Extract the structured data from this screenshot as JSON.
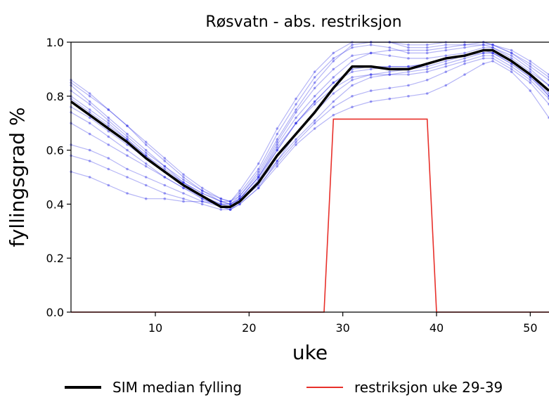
{
  "chart_data": {
    "type": "line",
    "title": "Røsvatn - abs. restriksjon",
    "xlabel": "uke",
    "ylabel": "fyllingsgrad %",
    "xlim": [
      1,
      52
    ],
    "ylim": [
      0.0,
      1.0
    ],
    "xticks": [
      10,
      20,
      30,
      40,
      50
    ],
    "yticks": [
      0.0,
      0.2,
      0.4,
      0.6,
      0.8,
      1.0
    ],
    "xtick_labels": [
      "10",
      "20",
      "30",
      "40",
      "50"
    ],
    "ytick_labels": [
      "0.0",
      "0.2",
      "0.4",
      "0.6",
      "0.8",
      "1.0"
    ],
    "grid": false,
    "legend_position": "bottom",
    "colors": {
      "median": "#000000",
      "restriction": "#e8302a",
      "simulations": "#2a2ae6"
    },
    "series": [
      {
        "name": "SIM median fylling",
        "x": [
          1,
          3,
          5,
          7,
          9,
          11,
          13,
          15,
          17,
          18,
          19,
          21,
          23,
          25,
          27,
          29,
          31,
          33,
          35,
          37,
          39,
          41,
          43,
          45,
          46,
          48,
          50,
          52
        ],
        "y": [
          0.78,
          0.73,
          0.68,
          0.63,
          0.57,
          0.52,
          0.47,
          0.43,
          0.39,
          0.39,
          0.41,
          0.48,
          0.58,
          0.66,
          0.74,
          0.83,
          0.91,
          0.91,
          0.9,
          0.9,
          0.92,
          0.94,
          0.95,
          0.97,
          0.97,
          0.93,
          0.88,
          0.82
        ]
      },
      {
        "name": "restriksjon uke 29-39",
        "x": [
          1,
          28,
          29,
          39,
          40,
          52
        ],
        "y": [
          0.0,
          0.0,
          0.715,
          0.715,
          0.0,
          0.0
        ]
      }
    ],
    "simulations": {
      "x": [
        1,
        3,
        5,
        7,
        9,
        11,
        13,
        15,
        17,
        18,
        19,
        21,
        23,
        25,
        27,
        29,
        31,
        33,
        35,
        37,
        39,
        41,
        43,
        45,
        46,
        48,
        50,
        52
      ],
      "runs": [
        [
          0.85,
          0.8,
          0.75,
          0.69,
          0.62,
          0.56,
          0.5,
          0.45,
          0.41,
          0.4,
          0.43,
          0.52,
          0.64,
          0.75,
          0.85,
          0.93,
          0.99,
          1.0,
          1.0,
          0.99,
          0.99,
          1.0,
          1.0,
          1.0,
          0.99,
          0.96,
          0.91,
          0.86
        ],
        [
          0.52,
          0.5,
          0.47,
          0.44,
          0.42,
          0.42,
          0.41,
          0.41,
          0.4,
          0.4,
          0.42,
          0.5,
          0.62,
          0.72,
          0.8,
          0.87,
          0.93,
          0.96,
          0.97,
          0.97,
          0.97,
          0.98,
          0.99,
          0.99,
          0.98,
          0.94,
          0.89,
          0.84
        ],
        [
          0.8,
          0.75,
          0.7,
          0.64,
          0.58,
          0.52,
          0.47,
          0.42,
          0.39,
          0.38,
          0.4,
          0.46,
          0.54,
          0.62,
          0.68,
          0.73,
          0.76,
          0.78,
          0.79,
          0.8,
          0.81,
          0.84,
          0.88,
          0.92,
          0.93,
          0.89,
          0.82,
          0.72
        ],
        [
          0.76,
          0.72,
          0.67,
          0.62,
          0.57,
          0.52,
          0.48,
          0.44,
          0.41,
          0.4,
          0.42,
          0.48,
          0.56,
          0.64,
          0.71,
          0.78,
          0.84,
          0.87,
          0.88,
          0.89,
          0.9,
          0.92,
          0.94,
          0.96,
          0.96,
          0.93,
          0.88,
          0.8
        ],
        [
          0.84,
          0.78,
          0.72,
          0.66,
          0.6,
          0.54,
          0.48,
          0.44,
          0.41,
          0.41,
          0.45,
          0.55,
          0.68,
          0.79,
          0.89,
          0.96,
          1.0,
          1.0,
          1.0,
          0.98,
          0.98,
          0.99,
          0.99,
          1.0,
          0.99,
          0.97,
          0.93,
          0.88
        ],
        [
          0.58,
          0.56,
          0.53,
          0.5,
          0.47,
          0.44,
          0.42,
          0.4,
          0.38,
          0.38,
          0.41,
          0.49,
          0.6,
          0.7,
          0.78,
          0.85,
          0.89,
          0.9,
          0.91,
          0.91,
          0.92,
          0.94,
          0.95,
          0.97,
          0.96,
          0.92,
          0.87,
          0.81
        ],
        [
          0.74,
          0.7,
          0.65,
          0.6,
          0.55,
          0.5,
          0.46,
          0.42,
          0.39,
          0.39,
          0.42,
          0.5,
          0.61,
          0.7,
          0.77,
          0.83,
          0.87,
          0.88,
          0.88,
          0.88,
          0.89,
          0.91,
          0.93,
          0.95,
          0.95,
          0.91,
          0.86,
          0.79
        ],
        [
          0.82,
          0.77,
          0.71,
          0.65,
          0.59,
          0.54,
          0.49,
          0.45,
          0.42,
          0.41,
          0.43,
          0.51,
          0.63,
          0.74,
          0.83,
          0.9,
          0.95,
          0.96,
          0.95,
          0.94,
          0.94,
          0.95,
          0.96,
          0.98,
          0.98,
          0.95,
          0.9,
          0.84
        ],
        [
          0.7,
          0.66,
          0.62,
          0.58,
          0.54,
          0.5,
          0.46,
          0.43,
          0.4,
          0.4,
          0.41,
          0.47,
          0.55,
          0.63,
          0.7,
          0.76,
          0.8,
          0.82,
          0.83,
          0.84,
          0.86,
          0.89,
          0.92,
          0.94,
          0.94,
          0.9,
          0.85,
          0.77
        ],
        [
          0.79,
          0.74,
          0.69,
          0.64,
          0.58,
          0.53,
          0.48,
          0.43,
          0.4,
          0.39,
          0.42,
          0.5,
          0.6,
          0.7,
          0.78,
          0.85,
          0.9,
          0.91,
          0.91,
          0.91,
          0.92,
          0.94,
          0.95,
          0.97,
          0.97,
          0.93,
          0.88,
          0.82
        ],
        [
          0.62,
          0.6,
          0.57,
          0.53,
          0.5,
          0.47,
          0.44,
          0.41,
          0.39,
          0.38,
          0.4,
          0.46,
          0.56,
          0.66,
          0.74,
          0.81,
          0.86,
          0.88,
          0.89,
          0.9,
          0.91,
          0.93,
          0.95,
          0.96,
          0.96,
          0.92,
          0.87,
          0.8
        ],
        [
          0.86,
          0.81,
          0.75,
          0.69,
          0.63,
          0.57,
          0.51,
          0.46,
          0.42,
          0.41,
          0.44,
          0.53,
          0.66,
          0.77,
          0.87,
          0.94,
          0.98,
          0.99,
          0.98,
          0.96,
          0.96,
          0.97,
          0.98,
          0.99,
          0.99,
          0.96,
          0.92,
          0.87
        ]
      ]
    }
  },
  "legend": {
    "items": [
      {
        "label": "SIM median fylling"
      },
      {
        "label": "restriksjon uke 29-39"
      }
    ]
  }
}
